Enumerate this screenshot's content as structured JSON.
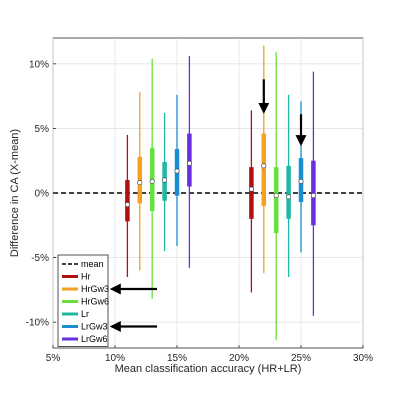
{
  "chart_data": {
    "type": "boxplot",
    "xlabel": "Mean classification accuracy (HR+LR)",
    "ylabel": "Difference in CA (X-mean)",
    "xlim": [
      5,
      30
    ],
    "ylim": [
      -12,
      12
    ],
    "x_ticks": [
      5,
      10,
      15,
      20,
      25,
      30
    ],
    "y_ticks": [
      -10,
      -5,
      0,
      5,
      10
    ],
    "x_tick_labels": [
      "5%",
      "10%",
      "15%",
      "20%",
      "25%",
      "30%"
    ],
    "y_tick_labels": [
      "-10%",
      "-5%",
      "0%",
      "5%",
      "10%"
    ],
    "grid": true,
    "legend_position": "bottom-left",
    "mean_line": {
      "name": "mean",
      "value": 0,
      "style": "dashed",
      "color": "#000000"
    },
    "series": [
      {
        "name": "Hr",
        "color": "#b01010",
        "groups": [
          {
            "x": 11,
            "whisker": [
              -6.5,
              4.5
            ],
            "box": [
              -2.2,
              1.0
            ],
            "median": -0.9
          },
          {
            "x": 21,
            "whisker": [
              -7.7,
              6.4
            ],
            "box": [
              -2.0,
              2.0
            ],
            "median": 0.3
          }
        ]
      },
      {
        "name": "HrGw3",
        "color": "#f4a020",
        "groups": [
          {
            "x": 12,
            "whisker": [
              -6.0,
              7.8
            ],
            "box": [
              -0.8,
              2.8
            ],
            "median": 0.8
          },
          {
            "x": 22,
            "whisker": [
              -6.2,
              11.4
            ],
            "box": [
              -1.0,
              4.6
            ],
            "median": 2.1
          }
        ]
      },
      {
        "name": "HrGw6",
        "color": "#66e040",
        "groups": [
          {
            "x": 13,
            "whisker": [
              -8.2,
              10.4
            ],
            "box": [
              -1.4,
              3.5
            ],
            "median": 0.9
          },
          {
            "x": 23,
            "whisker": [
              -11.4,
              10.9
            ],
            "box": [
              -3.1,
              2.0
            ],
            "median": -0.2
          }
        ]
      },
      {
        "name": "Lr",
        "color": "#1fb8a0",
        "groups": [
          {
            "x": 14,
            "whisker": [
              -4.5,
              6.2
            ],
            "box": [
              -0.6,
              2.4
            ],
            "median": 1.0
          },
          {
            "x": 24,
            "whisker": [
              -6.5,
              7.6
            ],
            "box": [
              -2.0,
              2.1
            ],
            "median": -0.3
          }
        ]
      },
      {
        "name": "LrGw3",
        "color": "#1a8cd0",
        "groups": [
          {
            "x": 15,
            "whisker": [
              -4.1,
              7.6
            ],
            "box": [
              -0.2,
              3.4
            ],
            "median": 1.7
          },
          {
            "x": 25,
            "whisker": [
              -4.6,
              7.1
            ],
            "box": [
              -0.7,
              2.7
            ],
            "median": 0.9
          }
        ]
      },
      {
        "name": "LrGw6",
        "color": "#6a2ee0",
        "groups": [
          {
            "x": 16,
            "whisker": [
              -5.8,
              10.6
            ],
            "box": [
              0.5,
              4.6
            ],
            "median": 2.3
          },
          {
            "x": 26,
            "whisker": [
              -9.5,
              9.4
            ],
            "box": [
              -2.5,
              2.5
            ],
            "median": -0.2
          }
        ]
      }
    ],
    "annotations": [
      {
        "type": "arrow",
        "direction": "down",
        "x": 22,
        "y_tip": 6.3,
        "y_tail": 8.8
      },
      {
        "type": "arrow",
        "direction": "down",
        "x": 25,
        "y_tip": 3.8,
        "y_tail": 6.1
      },
      {
        "type": "arrow",
        "direction": "left",
        "target": "legend:HrGw3"
      },
      {
        "type": "arrow",
        "direction": "left",
        "target": "legend:LrGw3"
      }
    ]
  }
}
